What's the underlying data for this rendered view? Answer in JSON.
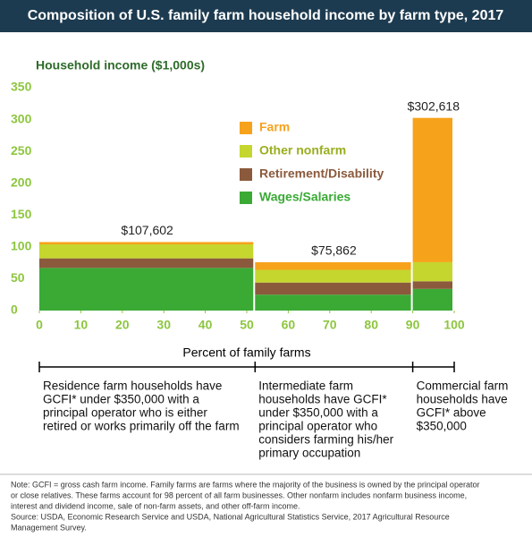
{
  "chart_data": {
    "type": "marimekko",
    "title": "Composition of U.S. family farm household income by farm type, 2017",
    "y_label": "Household income ($1,000s)",
    "x_label": "Percent of family farms",
    "widths": [
      52,
      38,
      10
    ],
    "series": [
      {
        "name": "Wages/Salaries",
        "color": "#3aaa35",
        "values": [
          67,
          25,
          34
        ]
      },
      {
        "name": "Retirement/Disability",
        "color": "#8b5a3c",
        "values": [
          15,
          19,
          12
        ]
      },
      {
        "name": "Other nonfarm",
        "color": "#c5d62f",
        "values": [
          22,
          20,
          30
        ]
      },
      {
        "name": "Farm",
        "color": "#f7a21b",
        "values": [
          3.602,
          11.862,
          226.618
        ]
      }
    ],
    "totals": [
      107.602,
      75.862,
      302.618
    ],
    "total_labels": [
      "$107,602",
      "$75,862",
      "$302,618"
    ],
    "xlim": [
      0,
      100
    ],
    "xticks": [
      0,
      10,
      20,
      30,
      40,
      50,
      60,
      70,
      80,
      90,
      100
    ],
    "ylim": [
      0,
      350
    ],
    "yticks": [
      0,
      50,
      100,
      150,
      200,
      250,
      300,
      350
    ],
    "descriptions": [
      [
        "Residence farm households have",
        "GCFI* under $350,000 with a",
        "principal operator who is either",
        "retired or works primarily off the farm"
      ],
      [
        "Intermediate farm",
        "households have GCFI*",
        "under $350,000 with a",
        "principal operator who",
        "considers farming his/her",
        "primary occupation"
      ],
      [
        "Commercial farm",
        "households have",
        "GCFI* above",
        "$350,000"
      ]
    ],
    "note": [
      "Note: GCFI = gross cash farm income. Family farms are farms where the majority of the business is owned by the principal operator",
      "or close relatives. These farms account for 98 percent of all farm businesses. Other nonfarm includes nonfarm business income,",
      "interest and dividend income, sale of non-farm assets, and other off-farm income."
    ],
    "source": [
      "Source: USDA, Economic Research Service and USDA, National Agricultural Statistics Service, 2017 Agricultural Resource",
      "Management Survey."
    ]
  }
}
